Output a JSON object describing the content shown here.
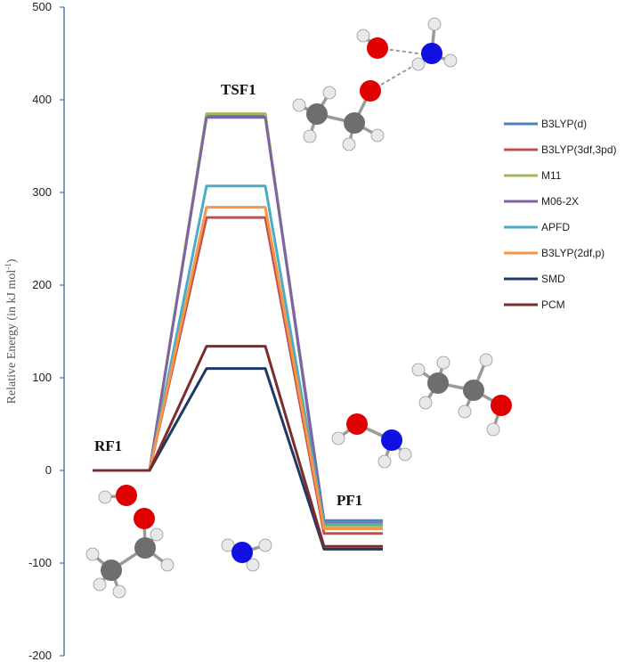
{
  "chart_data": {
    "type": "line",
    "title": "",
    "ylabel": "Relative Energy (in kJ mol",
    "ylabel_sup": "-1",
    "ylabel_tail": ")",
    "ylim": [
      -200,
      500
    ],
    "yticks": [
      -200,
      -100,
      0,
      100,
      200,
      300,
      400,
      500
    ],
    "stages": [
      "RF1",
      "TSF1",
      "PF1"
    ],
    "grid": false,
    "legend_position": "right",
    "series": [
      {
        "name": "B3LYP(d)",
        "color": "#4f81bd",
        "values": [
          0,
          383,
          -54
        ]
      },
      {
        "name": "B3LYP(3df,3pd)",
        "color": "#c0504d",
        "values": [
          0,
          273,
          -68
        ]
      },
      {
        "name": "M11",
        "color": "#9bbb59",
        "values": [
          0,
          385,
          -60
        ]
      },
      {
        "name": "M06-2X",
        "color": "#8064a2",
        "values": [
          0,
          381,
          -57
        ]
      },
      {
        "name": "APFD",
        "color": "#4bacc6",
        "values": [
          0,
          307,
          -58
        ]
      },
      {
        "name": "B3LYP(2df,p)",
        "color": "#f79646",
        "values": [
          0,
          284,
          -63
        ]
      },
      {
        "name": "SMD",
        "color": "#1f3864",
        "values": [
          0,
          110,
          -85
        ]
      },
      {
        "name": "PCM",
        "color": "#7b2c2c",
        "values": [
          0,
          134,
          -82
        ]
      }
    ]
  },
  "colors": {
    "oxygen": "#e00000",
    "nitrogen": "#1010e0",
    "carbon": "#6e6e6e",
    "hydrogen": "#e8e8e8",
    "axis": "#2e5da0"
  }
}
